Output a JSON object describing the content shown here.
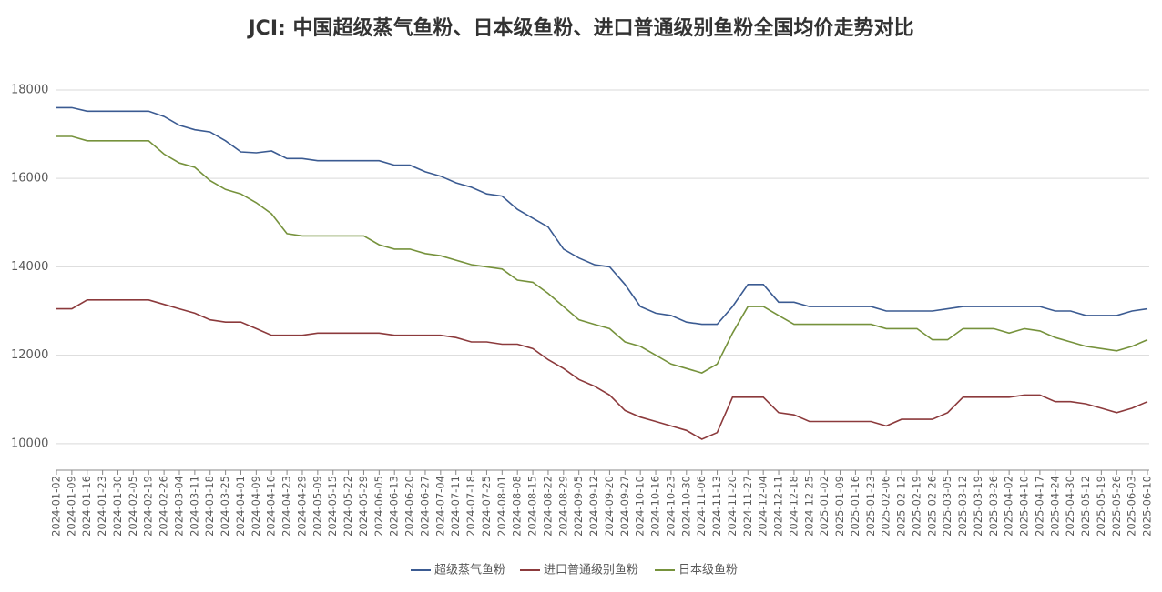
{
  "chart_data": {
    "type": "line",
    "title": "JCI: 中国超级蒸气鱼粉、日本级鱼粉、进口普通级别鱼粉全国均价走势对比",
    "categories": [
      "2024-01-02",
      "2024-01-09",
      "2024-01-16",
      "2024-01-23",
      "2024-01-30",
      "2024-02-05",
      "2024-02-19",
      "2024-02-26",
      "2024-03-04",
      "2024-03-11",
      "2024-03-18",
      "2024-03-25",
      "2024-04-01",
      "2024-04-09",
      "2024-04-16",
      "2024-04-23",
      "2024-04-29",
      "2024-05-09",
      "2024-05-15",
      "2024-05-22",
      "2024-05-29",
      "2024-06-05",
      "2024-06-13",
      "2024-06-20",
      "2024-06-27",
      "2024-07-04",
      "2024-07-11",
      "2024-07-18",
      "2024-07-25",
      "2024-08-01",
      "2024-08-08",
      "2024-08-15",
      "2024-08-22",
      "2024-08-29",
      "2024-09-05",
      "2024-09-12",
      "2024-09-20",
      "2024-09-27",
      "2024-10-10",
      "2024-10-16",
      "2024-10-23",
      "2024-10-30",
      "2024-11-06",
      "2024-11-13",
      "2024-11-20",
      "2024-11-27",
      "2024-12-04",
      "2024-12-11",
      "2024-12-18",
      "2024-12-25",
      "2025-01-02",
      "2025-01-09",
      "2025-01-16",
      "2025-01-23",
      "2025-02-06",
      "2025-02-12",
      "2025-02-19",
      "2025-02-26",
      "2025-03-05",
      "2025-03-12",
      "2025-03-19",
      "2025-03-26",
      "2025-04-02",
      "2025-04-10",
      "2025-04-17",
      "2025-04-24",
      "2025-04-30",
      "2025-05-12",
      "2025-05-19",
      "2025-05-26",
      "2025-06-03",
      "2025-06-10"
    ],
    "series": [
      {
        "name": "超级蒸气鱼粉",
        "color": "#3b5b92",
        "values": [
          17600,
          17600,
          17520,
          17520,
          17520,
          17520,
          17520,
          17400,
          17200,
          17100,
          17050,
          16850,
          16600,
          16580,
          16620,
          16450,
          16450,
          16400,
          16400,
          16400,
          16400,
          16400,
          16300,
          16300,
          16150,
          16050,
          15900,
          15800,
          15650,
          15600,
          15300,
          15100,
          14900,
          14400,
          14200,
          14050,
          14000,
          13600,
          13100,
          12950,
          12900,
          12750,
          12700,
          12700,
          13100,
          13600,
          13600,
          13200,
          13200,
          13100,
          13100,
          13100,
          13100,
          13100,
          13000,
          13000,
          13000,
          13000,
          13050,
          13100,
          13100,
          13100,
          13100,
          13100,
          13100,
          13000,
          13000,
          12900,
          12900,
          12900,
          13000,
          13050
        ]
      },
      {
        "name": "进口普通级别鱼粉",
        "color": "#8c3a3c",
        "values": [
          13050,
          13050,
          13250,
          13250,
          13250,
          13250,
          13250,
          13150,
          13050,
          12950,
          12800,
          12750,
          12750,
          12600,
          12450,
          12450,
          12450,
          12500,
          12500,
          12500,
          12500,
          12500,
          12450,
          12450,
          12450,
          12450,
          12400,
          12300,
          12300,
          12250,
          12250,
          12150,
          11900,
          11700,
          11450,
          11300,
          11100,
          10750,
          10600,
          10500,
          10400,
          10300,
          10100,
          10250,
          11050,
          11050,
          11050,
          10700,
          10650,
          10500,
          10500,
          10500,
          10500,
          10500,
          10400,
          10550,
          10550,
          10550,
          10700,
          11050,
          11050,
          11050,
          11050,
          11100,
          11100,
          10950,
          10950,
          10900,
          10800,
          10700,
          10800,
          10950
        ]
      },
      {
        "name": "日本级鱼粉",
        "color": "#76923c",
        "values": [
          16950,
          16950,
          16850,
          16850,
          16850,
          16850,
          16850,
          16550,
          16350,
          16250,
          15950,
          15750,
          15650,
          15450,
          15200,
          14750,
          14700,
          14700,
          14700,
          14700,
          14700,
          14500,
          14400,
          14400,
          14300,
          14250,
          14150,
          14050,
          14000,
          13950,
          13700,
          13650,
          13400,
          13100,
          12800,
          12700,
          12600,
          12300,
          12200,
          12000,
          11800,
          11700,
          11600,
          11800,
          12500,
          13100,
          13100,
          12900,
          12700,
          12700,
          12700,
          12700,
          12700,
          12700,
          12600,
          12600,
          12600,
          12350,
          12350,
          12600,
          12600,
          12600,
          12500,
          12600,
          12550,
          12400,
          12300,
          12200,
          12150,
          12100,
          12200,
          12350
        ]
      }
    ],
    "ylim": [
      9400,
      18400
    ],
    "yticks": [
      10000,
      12000,
      14000,
      16000,
      18000
    ],
    "grid": true,
    "legend": "bottom"
  }
}
